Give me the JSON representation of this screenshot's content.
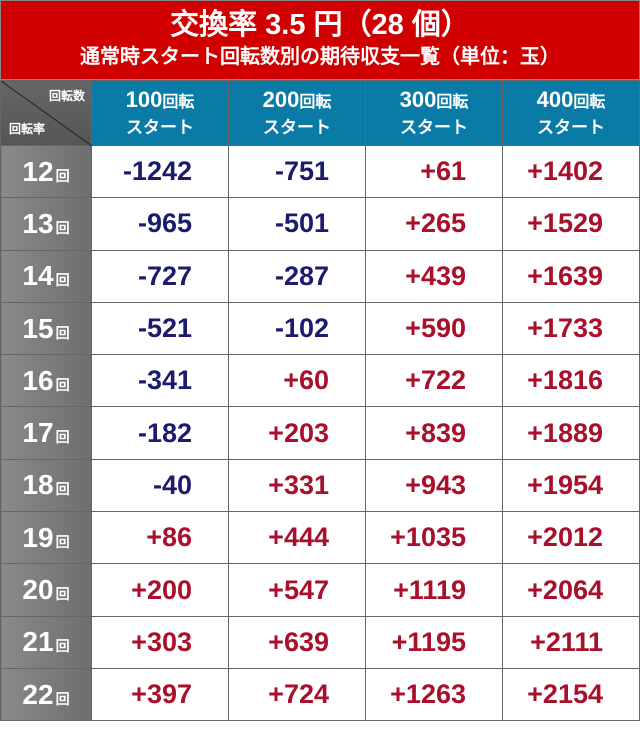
{
  "title": {
    "line1": "交換率 3.5 円（28 個）",
    "line2": "通常時スタート回転数別の期待収支一覧（単位：玉）"
  },
  "corner": {
    "top": "回転数",
    "bottom": "回転率"
  },
  "columns": [
    {
      "num": "100",
      "unit": "回転",
      "sub": "スタート"
    },
    {
      "num": "200",
      "unit": "回転",
      "sub": "スタート"
    },
    {
      "num": "300",
      "unit": "回転",
      "sub": "スタート"
    },
    {
      "num": "400",
      "unit": "回転",
      "sub": "スタート"
    }
  ],
  "row_unit": "回",
  "colors": {
    "positive": "#a8102c",
    "negative": "#1c1c6e",
    "header": "#0a7aa6",
    "title": "#d00000"
  },
  "rows": [
    {
      "rate": "12",
      "values": [
        "-1242",
        "-751",
        "+61",
        "+1402"
      ]
    },
    {
      "rate": "13",
      "values": [
        "-965",
        "-501",
        "+265",
        "+1529"
      ]
    },
    {
      "rate": "14",
      "values": [
        "-727",
        "-287",
        "+439",
        "+1639"
      ]
    },
    {
      "rate": "15",
      "values": [
        "-521",
        "-102",
        "+590",
        "+1733"
      ]
    },
    {
      "rate": "16",
      "values": [
        "-341",
        "+60",
        "+722",
        "+1816"
      ]
    },
    {
      "rate": "17",
      "values": [
        "-182",
        "+203",
        "+839",
        "+1889"
      ]
    },
    {
      "rate": "18",
      "values": [
        "-40",
        "+331",
        "+943",
        "+1954"
      ]
    },
    {
      "rate": "19",
      "values": [
        "+86",
        "+444",
        "+1035",
        "+2012"
      ]
    },
    {
      "rate": "20",
      "values": [
        "+200",
        "+547",
        "+1119",
        "+2064"
      ]
    },
    {
      "rate": "21",
      "values": [
        "+303",
        "+639",
        "+1195",
        "+2111"
      ]
    },
    {
      "rate": "22",
      "values": [
        "+397",
        "+724",
        "+1263",
        "+2154"
      ]
    }
  ]
}
